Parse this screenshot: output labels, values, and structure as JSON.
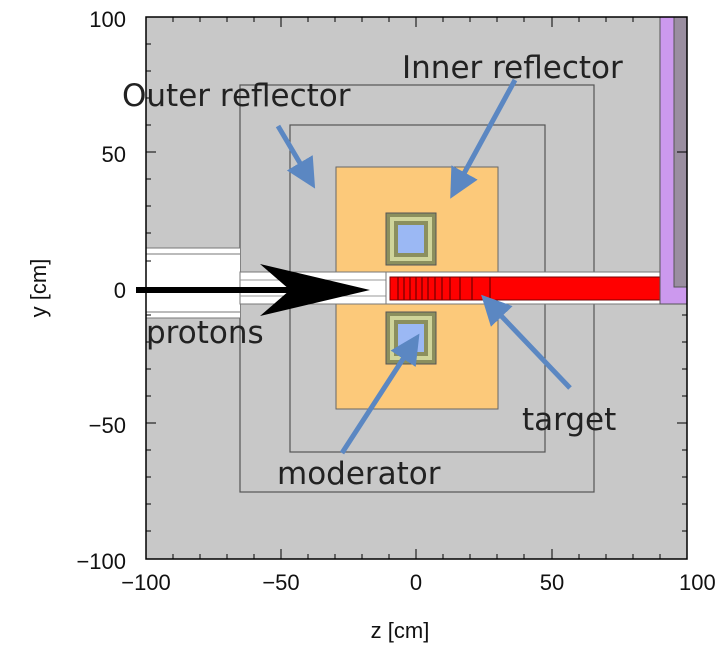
{
  "axes": {
    "xlabel": "z [cm]",
    "ylabel": "y [cm]",
    "xlim": [
      -100,
      100
    ],
    "ylim": [
      -100,
      100
    ],
    "x_ticks": [
      "−100",
      "−50",
      "0",
      "50",
      "100"
    ],
    "y_ticks": [
      "100",
      "50",
      "0",
      "−50",
      "−100"
    ]
  },
  "annotations": {
    "outer_reflector": "Outer reflector",
    "inner_reflector": "Inner reflector",
    "protons": "protons",
    "target": "target",
    "moderator": "moderator"
  },
  "colors": {
    "background": "#c8c8c8",
    "inner_reflector": "#fcc97a",
    "moderator": "#9bb8f4",
    "moderator_frame": "#8b8f5e",
    "target": "#ff0000",
    "target_dark": "#a00000",
    "beam_pipe": "#ffffff",
    "annotation_arrow": "#5b87c2",
    "shield_purple": "#cc99ee",
    "shield_gray": "#9a8ea0"
  }
}
